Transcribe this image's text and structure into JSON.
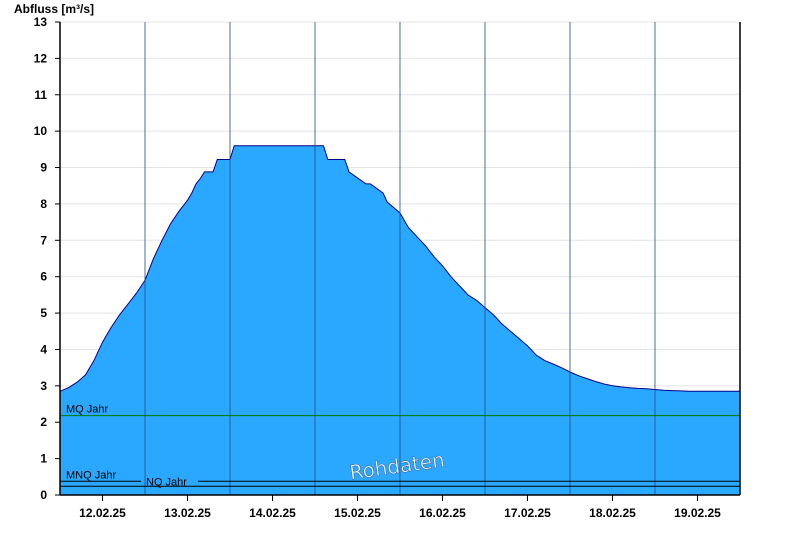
{
  "chart_data": {
    "type": "area",
    "ylabel": "Abfluss [m³/s]",
    "watermark": "Rohdaten",
    "xlim": [
      0,
      8
    ],
    "ylim": [
      0,
      13
    ],
    "yticks": [
      0,
      1,
      2,
      3,
      4,
      5,
      6,
      7,
      8,
      9,
      10,
      11,
      12,
      13
    ],
    "xticklabels": [
      "12.02.25",
      "13.02.25",
      "14.02.25",
      "15.02.25",
      "16.02.25",
      "17.02.25",
      "18.02.25",
      "19.02.25"
    ],
    "grid": true,
    "colors": {
      "area": "#2aa8ff",
      "outline": "#00008b",
      "mq_line": "#007a00",
      "nq_line": "#000000",
      "grid": "#e4e4e4"
    },
    "series": [
      {
        "x": [
          0,
          0.1,
          0.2,
          0.3,
          0.4,
          0.5,
          0.6,
          0.7,
          0.8,
          0.9,
          1.0,
          1.1,
          1.2,
          1.3,
          1.4,
          1.5,
          1.55,
          1.6,
          1.65,
          1.7,
          1.75,
          1.8,
          1.85,
          1.9,
          2.0,
          2.05,
          2.4,
          2.45,
          3.1,
          3.15,
          3.35,
          3.4,
          3.6,
          3.65,
          3.8,
          3.85,
          4.0,
          4.1,
          4.2,
          4.3,
          4.4,
          4.5,
          4.6,
          4.7,
          4.8,
          4.9,
          5.0,
          5.1,
          5.2,
          5.3,
          5.4,
          5.5,
          5.6,
          5.7,
          5.8,
          5.9,
          6.0,
          6.1,
          6.2,
          6.3,
          6.4,
          6.5,
          6.6,
          6.7,
          6.8,
          6.9,
          7.0,
          7.1,
          7.2,
          7.3,
          7.4,
          7.5,
          7.6,
          7.7,
          7.8,
          7.9,
          8.0
        ],
        "values": [
          2.85,
          2.95,
          3.1,
          3.3,
          3.7,
          4.2,
          4.6,
          4.95,
          5.25,
          5.55,
          5.9,
          6.5,
          7.0,
          7.45,
          7.8,
          8.1,
          8.3,
          8.55,
          8.7,
          8.88,
          8.88,
          8.88,
          9.22,
          9.22,
          9.22,
          9.6,
          9.6,
          9.6,
          9.6,
          9.22,
          9.22,
          8.88,
          8.55,
          8.55,
          8.3,
          8.05,
          7.75,
          7.35,
          7.1,
          6.85,
          6.55,
          6.3,
          6.0,
          5.75,
          5.5,
          5.35,
          5.15,
          4.95,
          4.7,
          4.5,
          4.3,
          4.1,
          3.85,
          3.7,
          3.6,
          3.5,
          3.38,
          3.28,
          3.2,
          3.12,
          3.05,
          3.0,
          2.97,
          2.95,
          2.93,
          2.92,
          2.9,
          2.88,
          2.87,
          2.86,
          2.85,
          2.85,
          2.85,
          2.85,
          2.85,
          2.85,
          2.85
        ]
      }
    ],
    "reference_lines": [
      {
        "label": "MQ Jahr",
        "value": 2.18,
        "color": "#007a00"
      },
      {
        "label": "MNQ Jahr",
        "value": 0.24,
        "color": "#000000"
      },
      {
        "label": "NQ Jahr",
        "value": 0.24,
        "color": "#000000"
      }
    ]
  }
}
